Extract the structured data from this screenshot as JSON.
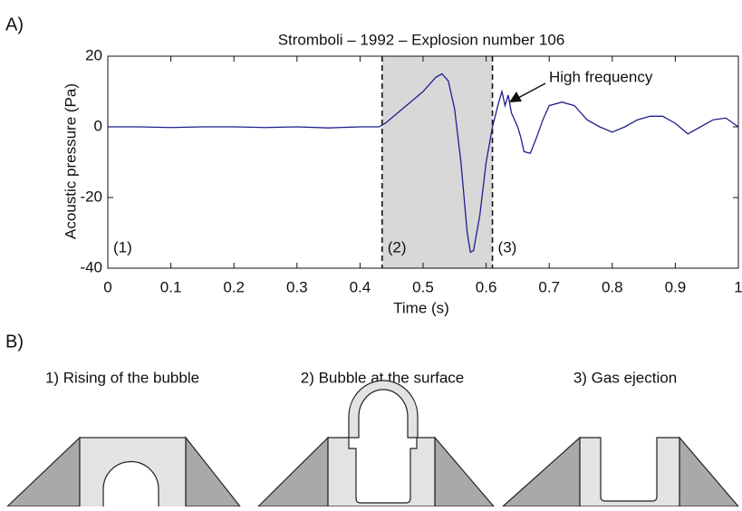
{
  "panel_a_label": "A)",
  "chart_data": {
    "type": "line",
    "title": "Stromboli – 1992 – Explosion number 106",
    "xlabel": "Time (s)",
    "ylabel": "Acoustic pressure (Pa)",
    "x": [
      0,
      0.05,
      0.1,
      0.15,
      0.2,
      0.25,
      0.3,
      0.35,
      0.4,
      0.43,
      0.44,
      0.46,
      0.48,
      0.5,
      0.52,
      0.53,
      0.54,
      0.55,
      0.56,
      0.57,
      0.575,
      0.58,
      0.59,
      0.6,
      0.61,
      0.62,
      0.625,
      0.63,
      0.635,
      0.64,
      0.65,
      0.655,
      0.66,
      0.67,
      0.68,
      0.69,
      0.7,
      0.72,
      0.74,
      0.76,
      0.78,
      0.8,
      0.82,
      0.84,
      0.86,
      0.88,
      0.9,
      0.92,
      0.94,
      0.96,
      0.98,
      1.0
    ],
    "series": [
      {
        "name": "Acoustic pressure",
        "color": "#1f1f8f",
        "values": [
          0,
          0,
          -0.2,
          0,
          0,
          -0.2,
          0,
          -0.3,
          0,
          0,
          1,
          4,
          7,
          10,
          14,
          15,
          13,
          5,
          -10,
          -30,
          -35.5,
          -35,
          -25,
          -10,
          0,
          7,
          10,
          6,
          9,
          4,
          0,
          -3,
          -7,
          -7.5,
          -3,
          2,
          6,
          7,
          6,
          2,
          0,
          -1.5,
          0,
          2,
          3,
          3,
          1,
          -2,
          0,
          2,
          2.5,
          0
        ]
      }
    ],
    "xlim": [
      0,
      1
    ],
    "ylim": [
      -40,
      20
    ],
    "xticks": [
      0,
      0.1,
      0.2,
      0.3,
      0.4,
      0.5,
      0.6,
      0.7,
      0.8,
      0.9,
      1
    ],
    "yticks": [
      -40,
      -20,
      0,
      20
    ],
    "shaded_span": [
      0.435,
      0.61
    ],
    "phase_labels": [
      "(1)",
      "(2)",
      "(3)"
    ],
    "annotation": "High frequency"
  },
  "diagram": {
    "label": "B)",
    "panels": [
      "1) Rising of the bubble",
      "2) Bubble at the surface",
      "3) Gas ejection"
    ]
  }
}
